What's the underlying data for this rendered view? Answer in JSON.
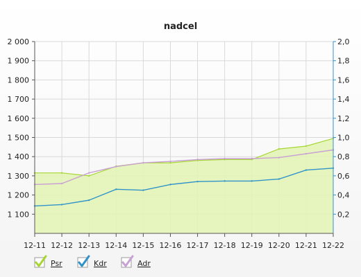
{
  "chart_data": {
    "type": "area",
    "title": "nadcel",
    "categories": [
      "12-11",
      "12-12",
      "12-13",
      "12-14",
      "12-15",
      "12-16",
      "12-17",
      "12-18",
      "12-19",
      "12-20",
      "12-21",
      "12-22"
    ],
    "y_left": {
      "range": [
        1000,
        2000
      ],
      "ticks": [
        1100,
        1200,
        1300,
        1400,
        1500,
        1600,
        1700,
        1800,
        1900,
        2000
      ],
      "tick_labels": [
        "1 100",
        "1 200",
        "1 300",
        "1 400",
        "1 500",
        "1 600",
        "1 700",
        "1 800",
        "1 900",
        "2 000"
      ]
    },
    "y_right": {
      "range": [
        0,
        2
      ],
      "ticks": [
        0.2,
        0.4,
        0.6,
        0.8,
        1.0,
        1.2,
        1.4,
        1.6,
        1.8,
        2.0
      ],
      "tick_labels": [
        "0,2",
        "0,4",
        "0,6",
        "0,8",
        "1,0",
        "1,2",
        "1,4",
        "1,6",
        "1,8",
        "2,0"
      ]
    },
    "grid": true,
    "legend_position": "bottom-left",
    "series": [
      {
        "name": "Psr",
        "kind": "area",
        "axis": "left",
        "color": "#a6d631",
        "fill": "#e3f5b4",
        "values": [
          1315,
          1315,
          1300,
          1350,
          1368,
          1368,
          1380,
          1385,
          1385,
          1440,
          1455,
          1495
        ]
      },
      {
        "name": "Kdr",
        "kind": "line",
        "axis": "left",
        "color": "#2f93c9",
        "values": [
          1143,
          1150,
          1173,
          1230,
          1225,
          1255,
          1270,
          1273,
          1273,
          1283,
          1330,
          1340
        ]
      },
      {
        "name": "Adr",
        "kind": "line",
        "axis": "left",
        "color": "#c9a0d4",
        "values": [
          1255,
          1260,
          1315,
          1348,
          1368,
          1375,
          1385,
          1390,
          1390,
          1395,
          1415,
          1435
        ]
      }
    ]
  },
  "colors": {
    "grid": "#d9d9d9",
    "right_axis": "#2f93c9",
    "axis": "#555555"
  }
}
